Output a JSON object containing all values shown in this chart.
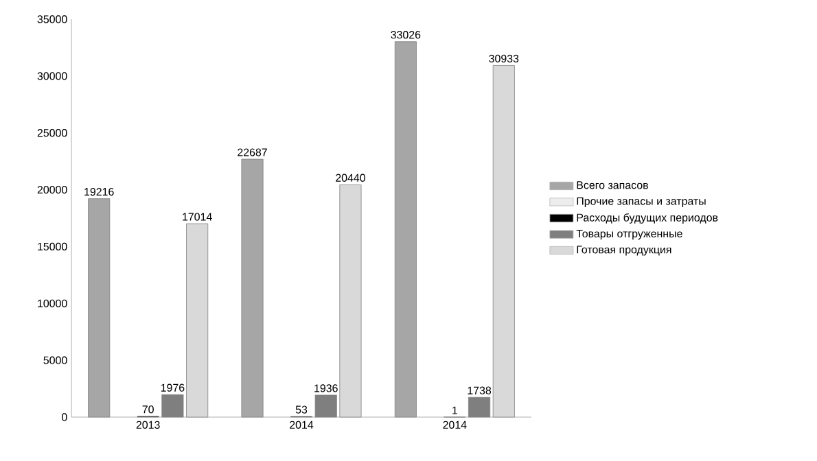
{
  "chart_data": {
    "type": "bar",
    "categories": [
      "2013",
      "2014",
      "2014"
    ],
    "series": [
      {
        "name": "Всего запасов",
        "color": "#a6a6a6",
        "values": [
          19216,
          22687,
          33026
        ]
      },
      {
        "name": "Прочие запасы и затраты",
        "color": "#ededed",
        "values": [
          null,
          null,
          null
        ]
      },
      {
        "name": "Расходы будущих периодов",
        "color": "#000000",
        "values": [
          70,
          53,
          1
        ]
      },
      {
        "name": "Товары отгруженные",
        "color": "#7f7f7f",
        "values": [
          1976,
          1936,
          1738
        ]
      },
      {
        "name": "Готовая продукция",
        "color": "#d9d9d9",
        "values": [
          17014,
          20440,
          30933
        ]
      }
    ],
    "ylim": [
      0,
      35000
    ],
    "yticks": [
      0,
      5000,
      10000,
      15000,
      20000,
      25000,
      30000,
      35000
    ],
    "data_labels": true,
    "legend": "right"
  }
}
